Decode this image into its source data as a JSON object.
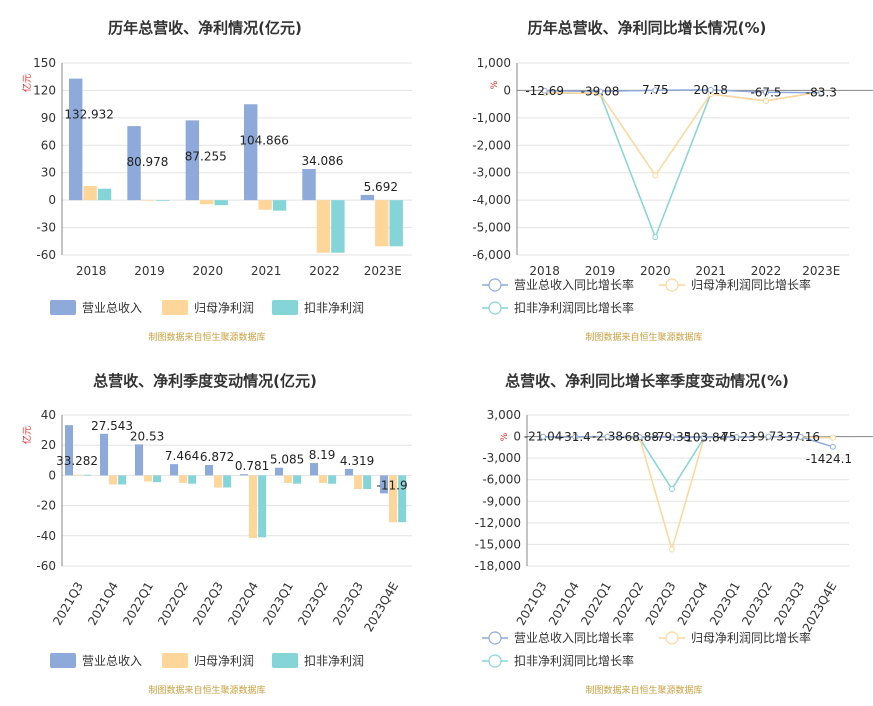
{
  "colors": {
    "revenue": "#8eaadb",
    "parent": "#ffd699",
    "deduct": "#85d5d8",
    "unit": "#e02020",
    "source": "#c8a040"
  },
  "legend": {
    "items": [
      "营业总收入",
      "归母净利润",
      "扣非净利润"
    ]
  },
  "legend_growth": {
    "items": [
      "营业总收入同比增长率",
      "归母净利润同比增长率",
      "扣非净利润同比增长率"
    ]
  },
  "source_text": "制图数据来自恒生聚源数据库",
  "chart_data": [
    {
      "type": "bar",
      "title": "历年总营收、净利情况(亿元)",
      "ylabel": "亿元",
      "categories": [
        "2018",
        "2019",
        "2020",
        "2021",
        "2022",
        "2023E"
      ],
      "ylim": [
        -60,
        150
      ],
      "yticks": [
        150,
        120,
        90,
        60,
        30,
        0,
        -30,
        -60
      ],
      "series": [
        {
          "name": "营业总收入",
          "values": [
            132.932,
            80.978,
            87.255,
            104.866,
            34.086,
            5.692
          ],
          "labels": [
            "132.932",
            "80.978",
            "87.255",
            "104.866",
            "34.086",
            "5.692"
          ]
        },
        {
          "name": "归母净利润",
          "values": [
            15.5,
            0.3,
            -4.5,
            -10.5,
            -57.5,
            -50.5
          ]
        },
        {
          "name": "扣非净利润",
          "values": [
            12.5,
            0.2,
            -5.5,
            -11.5,
            -57.5,
            -50.5
          ]
        }
      ]
    },
    {
      "type": "line",
      "title": "历年总营收、净利同比增长情况(%)",
      "ylabel": "%",
      "categories": [
        "2018",
        "2019",
        "2020",
        "2021",
        "2022",
        "2023E"
      ],
      "ylim": [
        -6000,
        1000
      ],
      "yticks": [
        "1,000",
        "0",
        "-1,000",
        "-2,000",
        "-3,000",
        "-4,000",
        "-5,000",
        "-6,000"
      ],
      "ytick_values": [
        1000,
        0,
        -1000,
        -2000,
        -3000,
        -4000,
        -5000,
        -6000
      ],
      "series": [
        {
          "name": "营业总收入同比增长率",
          "values": [
            -12.69,
            -39.08,
            7.75,
            20.18,
            -67.5,
            -83.3
          ],
          "labels": [
            "-12.69",
            "-39.08",
            "7.75",
            "20.18",
            "-67.5",
            "-83.3"
          ]
        },
        {
          "name": "归母净利润同比增长率",
          "values": [
            -80,
            -110,
            -3100,
            -130,
            -380,
            -50
          ]
        },
        {
          "name": "扣非净利润同比增长率",
          "values": [
            -90,
            -110,
            -5350,
            -130,
            -380,
            -50
          ]
        }
      ]
    },
    {
      "type": "bar",
      "title": "总营收、净利季度变动情况(亿元)",
      "ylabel": "亿元",
      "categories": [
        "2021Q3",
        "2021Q4",
        "2022Q1",
        "2022Q2",
        "2022Q3",
        "2022Q4",
        "2023Q1",
        "2023Q2",
        "2023Q3",
        "2023Q4E"
      ],
      "ylim": [
        -60,
        40
      ],
      "yticks": [
        40,
        20,
        0,
        -20,
        -40,
        -60
      ],
      "series": [
        {
          "name": "营业总收入",
          "values": [
            33.282,
            27.543,
            20.53,
            7.464,
            6.872,
            0.781,
            5.085,
            8.19,
            4.319,
            -11.9
          ],
          "labels": [
            "33.282",
            "27.543",
            "20.53",
            "7.464",
            "6.872",
            "0.781",
            "5.085",
            "8.19",
            "4.319",
            "-11.9"
          ]
        },
        {
          "name": "归母净利润",
          "values": [
            0.5,
            -6,
            -4,
            -5,
            -8,
            -41.5,
            -5,
            -5,
            -9,
            -31
          ]
        },
        {
          "name": "扣非净利润",
          "values": [
            0.4,
            -6,
            -4.5,
            -5.5,
            -8,
            -41,
            -5.5,
            -5.5,
            -9,
            -31
          ]
        }
      ]
    },
    {
      "type": "line",
      "title": "总营收、净利同比增长率季度变动情况(%)",
      "ylabel": "%",
      "categories": [
        "2021Q3",
        "2021Q4",
        "2022Q1",
        "2022Q2",
        "2022Q3",
        "2022Q4",
        "2023Q1",
        "2023Q2",
        "2023Q3",
        "2023Q4E"
      ],
      "ylim": [
        -18000,
        3000
      ],
      "yticks": [
        "3,000",
        "0",
        "-3,000",
        "-6,000",
        "-9,000",
        "-12,000",
        "-15,000",
        "-18,000"
      ],
      "ytick_values": [
        3000,
        0,
        -3000,
        -6000,
        -9000,
        -12000,
        -15000,
        -18000
      ],
      "series": [
        {
          "name": "营业总收入同比增长率",
          "values": [
            -21.04,
            -31.4,
            -2.38,
            -68.88,
            -79.35,
            -103.84,
            -75.23,
            -9.73,
            -37.16,
            -1424.1
          ],
          "labels": [
            "-21.04",
            "-31.4",
            "-2.38",
            "-68.88",
            "-79.35",
            "-103.84",
            "-75.23",
            "-9.73",
            "-37.16",
            "-1424.1"
          ]
        },
        {
          "name": "归母净利润同比增长率",
          "values": [
            -50,
            -80,
            -60,
            -200,
            -15700,
            -150,
            -100,
            -80,
            -120,
            -150
          ]
        },
        {
          "name": "扣非净利润同比增长率",
          "values": [
            -60,
            -90,
            -70,
            -250,
            -7300,
            -150,
            -100,
            -80,
            -120,
            -150
          ]
        }
      ]
    }
  ]
}
